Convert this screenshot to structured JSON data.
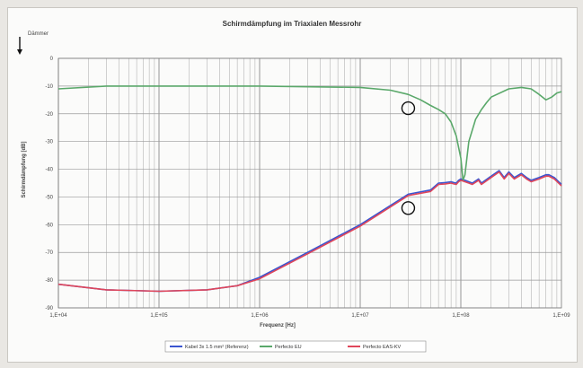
{
  "chart_data": {
    "type": "line",
    "title": "Schirmdämpfung im Triaxialen Messrohr",
    "xlabel": "Frequenz [Hz]",
    "ylabel": "Schirmdämpfung [dB]",
    "corner_annotation": "Dämmer",
    "x_scale": "log",
    "xlim": [
      10000,
      1000000000
    ],
    "ylim": [
      -90,
      0
    ],
    "x_tick_labels": [
      "1,E+04",
      "1,E+05",
      "1,E+06",
      "1,E+07",
      "1,E+08"
    ],
    "x_tick_values": [
      10000,
      100000,
      1000000,
      10000000,
      100000000
    ],
    "y_tick_labels": [
      "0",
      "-10",
      "-20",
      "-30",
      "-40",
      "-50",
      "-60",
      "-70",
      "-80",
      "-90"
    ],
    "y_tick_values": [
      0,
      -10,
      -20,
      -30,
      -40,
      -50,
      -60,
      -70,
      -80,
      -90
    ],
    "grid": true,
    "legend_position": "bottom",
    "series": [
      {
        "name": "Kabel 3x 1.5 mm² (Referenz)",
        "color": "#3a55d0",
        "points": [
          [
            10000,
            -81.5
          ],
          [
            30000,
            -83.5
          ],
          [
            100000,
            -84
          ],
          [
            300000,
            -83.5
          ],
          [
            600000,
            -82
          ],
          [
            1000000,
            -79
          ],
          [
            3000000,
            -70
          ],
          [
            10000000,
            -60
          ],
          [
            30000000,
            -49
          ],
          [
            50000000,
            -47.5
          ],
          [
            60000000,
            -45
          ],
          [
            70000000,
            -44.8
          ],
          [
            80000000,
            -44.5
          ],
          [
            85000000,
            -44.8
          ],
          [
            90000000,
            -45
          ],
          [
            95000000,
            -44
          ],
          [
            100000000,
            -43.5
          ],
          [
            110000000,
            -44
          ],
          [
            120000000,
            -44.5
          ],
          [
            130000000,
            -45
          ],
          [
            150000000,
            -43.5
          ],
          [
            160000000,
            -45
          ],
          [
            200000000,
            -42.5
          ],
          [
            240000000,
            -40.5
          ],
          [
            270000000,
            -43
          ],
          [
            300000000,
            -41
          ],
          [
            340000000,
            -43
          ],
          [
            400000000,
            -41.5
          ],
          [
            450000000,
            -43
          ],
          [
            500000000,
            -44
          ],
          [
            600000000,
            -43
          ],
          [
            700000000,
            -42
          ],
          [
            750000000,
            -42
          ],
          [
            850000000,
            -43
          ],
          [
            1000000000,
            -45.5
          ]
        ]
      },
      {
        "name": "Perfecto EU",
        "color": "#5aa86a",
        "points": [
          [
            10000,
            -11
          ],
          [
            30000,
            -10
          ],
          [
            100000,
            -10
          ],
          [
            1000000,
            -10
          ],
          [
            10000000,
            -10.5
          ],
          [
            20000000,
            -11.5
          ],
          [
            30000000,
            -13
          ],
          [
            40000000,
            -15
          ],
          [
            50000000,
            -17
          ],
          [
            60000000,
            -18.5
          ],
          [
            70000000,
            -20
          ],
          [
            80000000,
            -23
          ],
          [
            90000000,
            -28
          ],
          [
            100000000,
            -36
          ],
          [
            105000000,
            -44
          ],
          [
            110000000,
            -42
          ],
          [
            120000000,
            -30
          ],
          [
            140000000,
            -22
          ],
          [
            160000000,
            -18.5
          ],
          [
            180000000,
            -16
          ],
          [
            200000000,
            -14
          ],
          [
            300000000,
            -11
          ],
          [
            400000000,
            -10.5
          ],
          [
            500000000,
            -11
          ],
          [
            600000000,
            -13
          ],
          [
            700000000,
            -15
          ],
          [
            800000000,
            -14
          ],
          [
            900000000,
            -12.5
          ],
          [
            1000000000,
            -12
          ]
        ]
      },
      {
        "name": "Perfecto EAS-KV",
        "color": "#e0465a",
        "points": [
          [
            10000,
            -81.5
          ],
          [
            30000,
            -83.5
          ],
          [
            100000,
            -84
          ],
          [
            300000,
            -83.5
          ],
          [
            600000,
            -82
          ],
          [
            1000000,
            -79.5
          ],
          [
            3000000,
            -70.5
          ],
          [
            10000000,
            -60.5
          ],
          [
            30000000,
            -49.5
          ],
          [
            50000000,
            -48
          ],
          [
            60000000,
            -45.5
          ],
          [
            70000000,
            -45.3
          ],
          [
            80000000,
            -45
          ],
          [
            85000000,
            -45.3
          ],
          [
            90000000,
            -45.5
          ],
          [
            95000000,
            -44.5
          ],
          [
            100000000,
            -44
          ],
          [
            110000000,
            -44.5
          ],
          [
            120000000,
            -45
          ],
          [
            130000000,
            -45.5
          ],
          [
            150000000,
            -44
          ],
          [
            160000000,
            -45.5
          ],
          [
            200000000,
            -43
          ],
          [
            240000000,
            -41
          ],
          [
            270000000,
            -43.5
          ],
          [
            300000000,
            -41.5
          ],
          [
            340000000,
            -43.5
          ],
          [
            400000000,
            -42
          ],
          [
            450000000,
            -43.5
          ],
          [
            500000000,
            -44.5
          ],
          [
            600000000,
            -43.5
          ],
          [
            700000000,
            -42.5
          ],
          [
            750000000,
            -42.5
          ],
          [
            850000000,
            -43.5
          ],
          [
            1000000000,
            -46
          ]
        ]
      }
    ]
  }
}
